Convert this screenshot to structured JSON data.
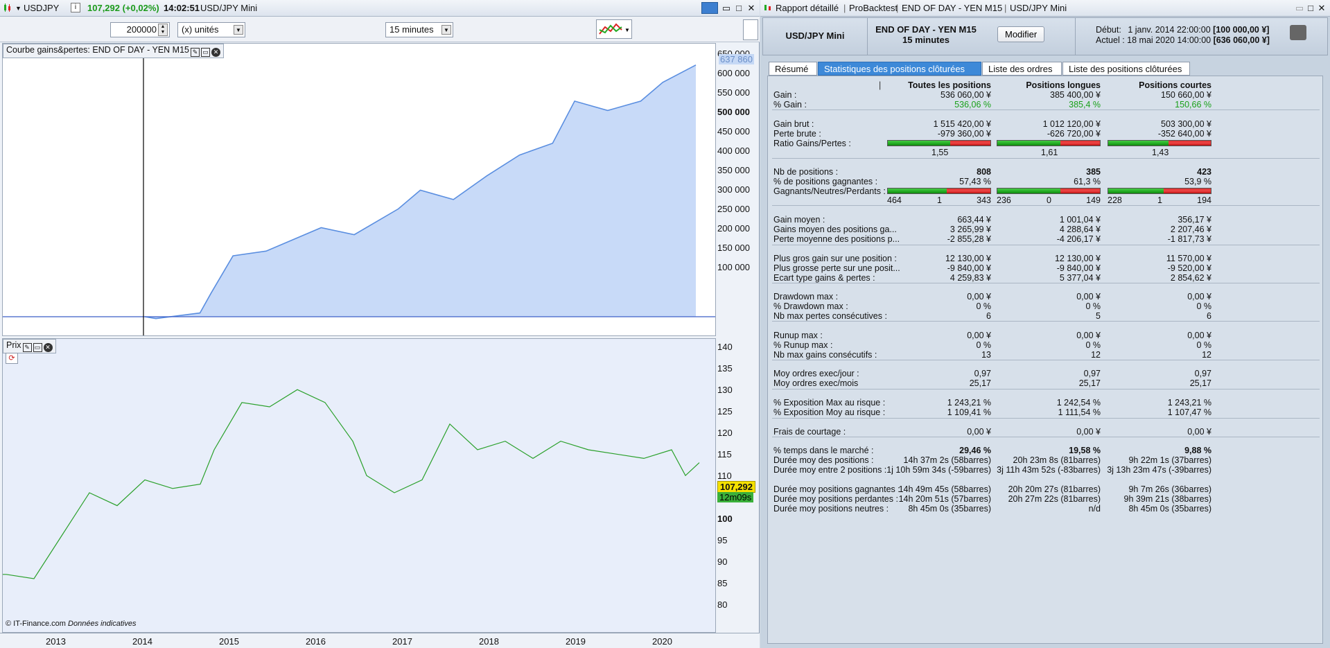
{
  "left": {
    "instrument": "USDJPY",
    "price_change": "107,292 (+0,02%)",
    "time": "14:02:51",
    "instrument_name": "USD/JPY Mini",
    "quantity": "200000",
    "unit": "(x) unités",
    "timeframe": "15 minutes",
    "equity_title": "Courbe gains&pertes: END OF DAY - YEN M15",
    "equity_last": "637 860",
    "equity_ticks": [
      "650 000",
      "600 000",
      "550 000",
      "500 000",
      "450 000",
      "400 000",
      "350 000",
      "300 000",
      "250 000",
      "200 000",
      "150 000",
      "100 000"
    ],
    "price_title": "Prix",
    "price_ticks": [
      "140",
      "135",
      "130",
      "125",
      "120",
      "115",
      "110",
      "100",
      "95",
      "90",
      "85",
      "80"
    ],
    "price_last": "107,292",
    "countdown": "12m09s",
    "copyright": "© IT-Finance.com",
    "disclaimer": "Données indicatives",
    "years": [
      "2013",
      "2014",
      "2015",
      "2016",
      "2017",
      "2018",
      "2019",
      "2020"
    ]
  },
  "right": {
    "title": "Rapport détaillé",
    "probacktest": "ProBacktest",
    "system": "END OF DAY - YEN M15",
    "instrument": "USD/JPY Mini",
    "head_instrument": "USD/JPY Mini",
    "head_system": "END OF DAY - YEN M15",
    "head_tf": "15 minutes",
    "modify_label": "Modifier",
    "debut_label": "Début:",
    "debut_value": "1 janv. 2014 22:00:00",
    "debut_capital": "[100 000,00 ¥]",
    "actuel_label": "Actuel :",
    "actuel_value": "18 mai 2020 14:00:00",
    "actuel_capital": "[636 060,00 ¥]",
    "tabs": [
      "Résumé",
      "Statistiques des positions clôturées",
      "Liste des ordres",
      "Liste des positions clôturées"
    ],
    "col_headers": [
      "Toutes les positions",
      "Positions longues",
      "Positions courtes"
    ],
    "rows": [
      {
        "label": "Gain :",
        "vals": [
          "536 060,00 ¥",
          "385 400,00 ¥",
          "150 660,00 ¥"
        ]
      },
      {
        "label": "% Gain :",
        "vals": [
          "536,06 %",
          "385,4 %",
          "150,66 %"
        ],
        "cls": "green"
      },
      {
        "label": "Gain brut :",
        "vals": [
          "1 515 420,00 ¥",
          "1 012 120,00 ¥",
          "503 300,00 ¥"
        ]
      },
      {
        "label": "Perte brute :",
        "vals": [
          "-979 360,00 ¥",
          "-626 720,00 ¥",
          "-352 640,00 ¥"
        ]
      },
      {
        "label": "Ratio Gains/Pertes :",
        "vals": [
          "",
          "",
          ""
        ]
      },
      {
        "label": "Nb de positions :",
        "vals": [
          "808",
          "385",
          "423"
        ],
        "cls": "bold"
      },
      {
        "label": "% de positions gagnantes :",
        "vals": [
          "57,43 %",
          "61,3 %",
          "53,9 %"
        ]
      },
      {
        "label": "Gagnants/Neutres/Perdants :",
        "vals": [
          "",
          "",
          ""
        ]
      },
      {
        "label": "Gain moyen :",
        "vals": [
          "663,44 ¥",
          "1 001,04 ¥",
          "356,17 ¥"
        ]
      },
      {
        "label": "Gains moyen des positions ga...",
        "vals": [
          "3 265,99 ¥",
          "4 288,64 ¥",
          "2 207,46 ¥"
        ]
      },
      {
        "label": "Perte moyenne des positions p...",
        "vals": [
          "-2 855,28 ¥",
          "-4 206,17 ¥",
          "-1 817,73 ¥"
        ]
      },
      {
        "label": "Plus gros gain sur une position :",
        "vals": [
          "12 130,00 ¥",
          "12 130,00 ¥",
          "11 570,00 ¥"
        ]
      },
      {
        "label": "Plus grosse perte sur une posit...",
        "vals": [
          "-9 840,00 ¥",
          "-9 840,00 ¥",
          "-9 520,00 ¥"
        ]
      },
      {
        "label": "Ecart type gains & pertes :",
        "vals": [
          "4 259,83 ¥",
          "5 377,04 ¥",
          "2 854,62 ¥"
        ]
      },
      {
        "label": "Drawdown max :",
        "vals": [
          "0,00 ¥",
          "0,00 ¥",
          "0,00 ¥"
        ]
      },
      {
        "label": "% Drawdown max :",
        "vals": [
          "0 %",
          "0 %",
          "0 %"
        ]
      },
      {
        "label": "Nb max pertes consécutives :",
        "vals": [
          "6",
          "5",
          "6"
        ]
      },
      {
        "label": "Runup max :",
        "vals": [
          "0,00 ¥",
          "0,00 ¥",
          "0,00 ¥"
        ]
      },
      {
        "label": "% Runup max :",
        "vals": [
          "0 %",
          "0 %",
          "0 %"
        ]
      },
      {
        "label": "Nb max gains consécutifs :",
        "vals": [
          "13",
          "12",
          "12"
        ]
      },
      {
        "label": "Moy ordres exec/jour :",
        "vals": [
          "0,97",
          "0,97",
          "0,97"
        ]
      },
      {
        "label": "Moy ordres exec/mois",
        "vals": [
          "25,17",
          "25,17",
          "25,17"
        ]
      },
      {
        "label": "% Exposition Max au risque :",
        "vals": [
          "1 243,21 %",
          "1 242,54 %",
          "1 243,21 %"
        ]
      },
      {
        "label": "% Exposition Moy au risque :",
        "vals": [
          "1 109,41 %",
          "1 111,54 %",
          "1 107,47 %"
        ]
      },
      {
        "label": "Frais de courtage :",
        "vals": [
          "0,00 ¥",
          "0,00 ¥",
          "0,00 ¥"
        ]
      },
      {
        "label": "% temps dans le marché :",
        "vals": [
          "29,46 %",
          "19,58 %",
          "9,88 %"
        ],
        "cls": "bold"
      },
      {
        "label": "Durée moy des positions :",
        "vals": [
          "14h 37m 2s (58barres)",
          "20h 23m 8s (81barres)",
          "9h 22m 1s (37barres)"
        ]
      },
      {
        "label": "Durée moy entre 2 positions :",
        "vals": [
          "1j 10h 59m 34s (-59barres)",
          "3j 11h 43m 52s (-83barres)",
          "3j 13h 23m 47s (-39barres)"
        ]
      },
      {
        "label": "Durée moy positions gagnantes :",
        "vals": [
          "14h 49m 45s (58barres)",
          "20h 20m 27s (81barres)",
          "9h 7m 26s (36barres)"
        ]
      },
      {
        "label": "Durée moy positions perdantes :",
        "vals": [
          "14h 20m 51s (57barres)",
          "20h 27m 22s (81barres)",
          "9h 39m 21s (38barres)"
        ]
      },
      {
        "label": "Durée moy positions neutres :",
        "vals": [
          "8h 45m 0s (35barres)",
          "n/d",
          "8h 45m 0s (35barres)"
        ]
      }
    ],
    "ratios": [
      "1,55",
      "1,61",
      "1,43"
    ],
    "ratio_fracs": [
      0.608,
      0.618,
      0.589
    ],
    "gnp": [
      [
        "464",
        "1",
        "343"
      ],
      [
        "236",
        "0",
        "149"
      ],
      [
        "228",
        "1",
        "194"
      ]
    ],
    "gnp_fracs": [
      0.574,
      0.613,
      0.539
    ]
  },
  "colors": {
    "accent": "#3d89d8",
    "green": "#1aa01a",
    "equity_fill": "#c8daf8",
    "equity_line": "#5a8ee0"
  }
}
